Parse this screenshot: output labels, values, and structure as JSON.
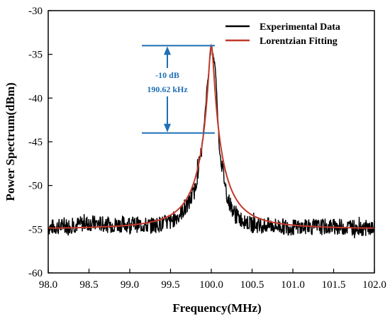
{
  "chart_data": {
    "type": "line",
    "xlabel": "Frequency(MHz)",
    "ylabel": "Power Spectrum(dBm)",
    "xlim": [
      98.0,
      102.0
    ],
    "ylim": [
      -60,
      -30
    ],
    "x_ticks": [
      98.0,
      98.5,
      99.0,
      99.5,
      100.0,
      100.5,
      101.0,
      101.5,
      102.0
    ],
    "x_tick_labels": [
      "98.0",
      "98.5",
      "99.0",
      "99.5",
      "100.0",
      "100.5",
      "101.0",
      "101.5",
      "102.0"
    ],
    "y_ticks": [
      -60,
      -55,
      -50,
      -45,
      -40,
      -35,
      -30
    ],
    "y_tick_labels": [
      "-60",
      "-55",
      "-50",
      "-45",
      "-40",
      "-35",
      "-30"
    ],
    "legend_position": "top-right",
    "grid": false,
    "series": [
      {
        "name": "Experimental Data",
        "color": "#000000",
        "noise_floor_dBm": -54.8,
        "x": [
          98.0,
          98.25,
          98.5,
          98.75,
          99.0,
          99.25,
          99.5,
          99.7,
          99.8,
          99.9,
          99.95,
          100.0,
          100.05,
          100.1,
          100.2,
          100.3,
          100.5,
          100.75,
          101.0,
          101.5,
          102.0
        ],
        "y": [
          -54.8,
          -54.6,
          -54.3,
          -54.5,
          -54.4,
          -54.6,
          -54.2,
          -52.5,
          -50.5,
          -44.5,
          -38.5,
          -34.0,
          -36.5,
          -46.0,
          -51.5,
          -53.5,
          -54.5,
          -54.6,
          -54.8,
          -54.7,
          -54.9
        ]
      },
      {
        "name": "Lorentzian Fitting",
        "color": "#c0392b",
        "center_MHz": 100.0,
        "peak_dBm": -34.0,
        "floor_dBm": -55.0,
        "fwhm_MHz": 0.0603
      }
    ],
    "annotations": [
      {
        "label": "-10 dB",
        "value_text": "190.62 kHz",
        "from_y": -34.0,
        "to_y": -44.0,
        "color": "#1f6fb5"
      }
    ]
  }
}
